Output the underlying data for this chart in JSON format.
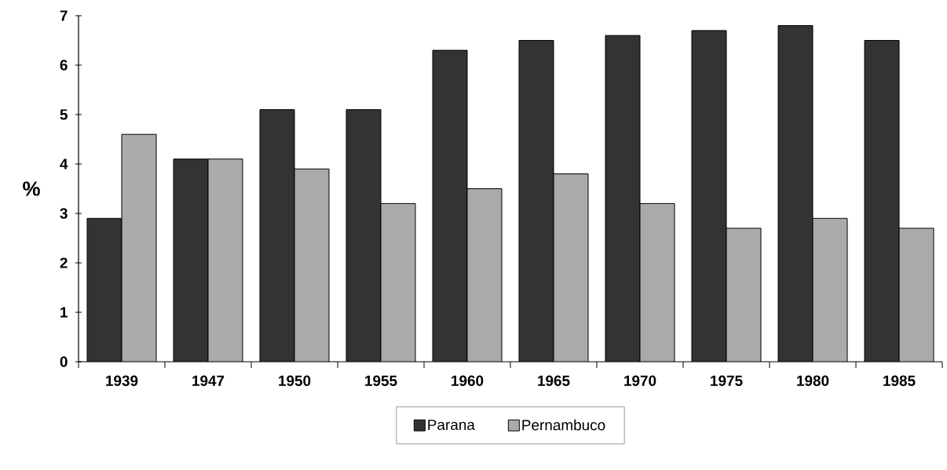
{
  "chart_data": {
    "type": "bar",
    "ylabel": "%",
    "categories": [
      "1939",
      "1947",
      "1950",
      "1955",
      "1960",
      "1965",
      "1970",
      "1975",
      "1980",
      "1985"
    ],
    "series": [
      {
        "name": "Parana",
        "color": "#333333",
        "values": [
          2.9,
          4.1,
          5.1,
          5.1,
          6.3,
          6.5,
          6.6,
          6.7,
          6.8,
          6.5
        ]
      },
      {
        "name": "Pernambuco",
        "color": "#aaaaaa",
        "values": [
          4.6,
          4.1,
          3.9,
          3.2,
          3.5,
          3.8,
          3.2,
          2.7,
          2.9,
          2.7
        ]
      }
    ],
    "ylim": [
      0,
      7
    ],
    "yticks": [
      0,
      1,
      2,
      3,
      4,
      5,
      6,
      7
    ],
    "grid": false,
    "legend": "bottom"
  }
}
